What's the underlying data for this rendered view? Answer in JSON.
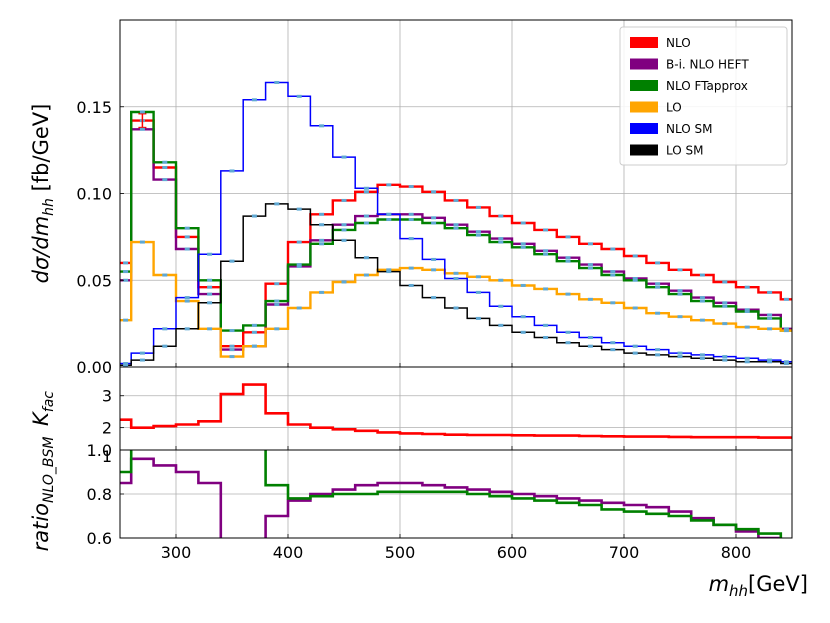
{
  "chart_data": {
    "type": "line",
    "style": "step",
    "xlabel_main": "m",
    "xlabel_sub": "hh",
    "xlabel_unit": "[GeV]",
    "xlim": [
      250,
      850
    ],
    "x_ticks": [
      300,
      400,
      500,
      600,
      700,
      800
    ],
    "grid": true,
    "bin_edges": [
      250,
      260,
      280,
      300,
      320,
      340,
      360,
      380,
      400,
      420,
      440,
      460,
      480,
      500,
      520,
      540,
      560,
      580,
      600,
      620,
      640,
      660,
      680,
      700,
      720,
      740,
      760,
      780,
      800,
      820,
      840,
      850
    ],
    "panels": [
      {
        "id": "main",
        "ylabel_parts": {
          "main": "dσ/dm",
          "sub": "hh",
          "unit": " [fb/GeV]"
        },
        "ylim": [
          0,
          0.2
        ],
        "y_ticks": [
          0.0,
          0.05,
          0.1,
          0.15
        ],
        "y_tick_labels": [
          "0.00",
          "0.05",
          "0.10",
          "0.15"
        ],
        "legend_position": "top-right",
        "series": [
          {
            "name": "NLO",
            "color": "#ff0000",
            "values": [
              0.06,
              0.142,
              0.115,
              0.075,
              0.046,
              0.012,
              0.02,
              0.048,
              0.072,
              0.088,
              0.096,
              0.101,
              0.105,
              0.104,
              0.101,
              0.096,
              0.092,
              0.087,
              0.083,
              0.079,
              0.075,
              0.071,
              0.068,
              0.064,
              0.06,
              0.056,
              0.053,
              0.049,
              0.046,
              0.043,
              0.039
            ],
            "error_bar_x": 270,
            "error_bar_size": 0.004
          },
          {
            "name": "B-i. NLO HEFT",
            "color": "#800080",
            "values": [
              0.05,
              0.137,
              0.108,
              0.068,
              0.042,
              0.01,
              0.012,
              0.036,
              0.058,
              0.073,
              0.082,
              0.087,
              0.088,
              0.088,
              0.086,
              0.082,
              0.078,
              0.074,
              0.071,
              0.067,
              0.063,
              0.059,
              0.055,
              0.051,
              0.048,
              0.044,
              0.04,
              0.037,
              0.033,
              0.03,
              0.022
            ]
          },
          {
            "name": "NLO FTapprox",
            "color": "#008000",
            "values": [
              0.055,
              0.147,
              0.118,
              0.08,
              0.05,
              0.021,
              0.024,
              0.038,
              0.059,
              0.071,
              0.079,
              0.083,
              0.085,
              0.085,
              0.083,
              0.08,
              0.076,
              0.072,
              0.069,
              0.065,
              0.061,
              0.057,
              0.053,
              0.05,
              0.046,
              0.042,
              0.038,
              0.035,
              0.032,
              0.028,
              0.021
            ]
          },
          {
            "name": "LO",
            "color": "#ffa500",
            "values": [
              0.027,
              0.072,
              0.053,
              0.038,
              0.022,
              0.006,
              0.012,
              0.022,
              0.034,
              0.043,
              0.049,
              0.053,
              0.056,
              0.057,
              0.056,
              0.054,
              0.052,
              0.05,
              0.047,
              0.045,
              0.042,
              0.039,
              0.037,
              0.034,
              0.031,
              0.029,
              0.027,
              0.025,
              0.023,
              0.022,
              0.021
            ]
          },
          {
            "name": "NLO SM",
            "color": "#0000ff",
            "values": [
              0.002,
              0.008,
              0.022,
              0.04,
              0.065,
              0.113,
              0.154,
              0.164,
              0.156,
              0.139,
              0.121,
              0.103,
              0.088,
              0.074,
              0.062,
              0.051,
              0.043,
              0.035,
              0.029,
              0.024,
              0.02,
              0.017,
              0.014,
              0.012,
              0.01,
              0.008,
              0.007,
              0.006,
              0.005,
              0.004,
              0.003
            ]
          },
          {
            "name": "LO SM",
            "color": "#000000",
            "values": [
              0.001,
              0.004,
              0.012,
              0.022,
              0.037,
              0.061,
              0.087,
              0.094,
              0.091,
              0.082,
              0.073,
              0.063,
              0.055,
              0.047,
              0.04,
              0.034,
              0.028,
              0.024,
              0.02,
              0.017,
              0.014,
              0.012,
              0.01,
              0.008,
              0.007,
              0.006,
              0.005,
              0.004,
              0.003,
              0.003,
              0.002
            ]
          }
        ]
      },
      {
        "id": "kfac",
        "ylabel_parts": {
          "main": "K",
          "sub": "fac",
          "unit": ""
        },
        "ylim": [
          1.3,
          3.9
        ],
        "y_ticks": [
          2,
          3
        ],
        "y_tick_labels": [
          "2",
          "3"
        ],
        "series": [
          {
            "name": "",
            "color": "#ff0000",
            "values": [
              2.25,
              2.0,
              2.05,
              2.1,
              2.2,
              3.05,
              3.35,
              2.45,
              2.1,
              2.0,
              1.95,
              1.9,
              1.85,
              1.82,
              1.8,
              1.78,
              1.77,
              1.77,
              1.76,
              1.75,
              1.75,
              1.74,
              1.73,
              1.72,
              1.72,
              1.71,
              1.7,
              1.7,
              1.7,
              1.69,
              1.69
            ]
          }
        ]
      },
      {
        "id": "ratio",
        "ylabel_parts": {
          "main": "ratio",
          "sub": "NLO_BSM",
          "unit": ""
        },
        "ylim": [
          0.6,
          1.0
        ],
        "y_ticks": [
          0.6,
          0.8,
          1.0
        ],
        "y_tick_labels": [
          "0.6",
          "0.8",
          "1.0"
        ],
        "y_top_label": "1",
        "series": [
          {
            "name": "",
            "color": "#800080",
            "values": [
              0.85,
              0.96,
              0.93,
              0.9,
              0.85,
              0.35,
              0.4,
              0.7,
              0.77,
              0.8,
              0.82,
              0.84,
              0.85,
              0.85,
              0.84,
              0.83,
              0.82,
              0.81,
              0.8,
              0.79,
              0.78,
              0.77,
              0.76,
              0.75,
              0.74,
              0.72,
              0.69,
              0.66,
              0.63,
              0.6,
              0.56
            ]
          },
          {
            "name": "",
            "color": "#008000",
            "values": [
              0.9,
              1.03,
              1.03,
              1.05,
              1.08,
              1.1,
              1.13,
              0.84,
              0.78,
              0.79,
              0.8,
              0.8,
              0.81,
              0.81,
              0.81,
              0.81,
              0.8,
              0.79,
              0.78,
              0.77,
              0.76,
              0.75,
              0.73,
              0.72,
              0.71,
              0.7,
              0.68,
              0.66,
              0.64,
              0.62,
              0.58
            ]
          }
        ]
      }
    ]
  }
}
